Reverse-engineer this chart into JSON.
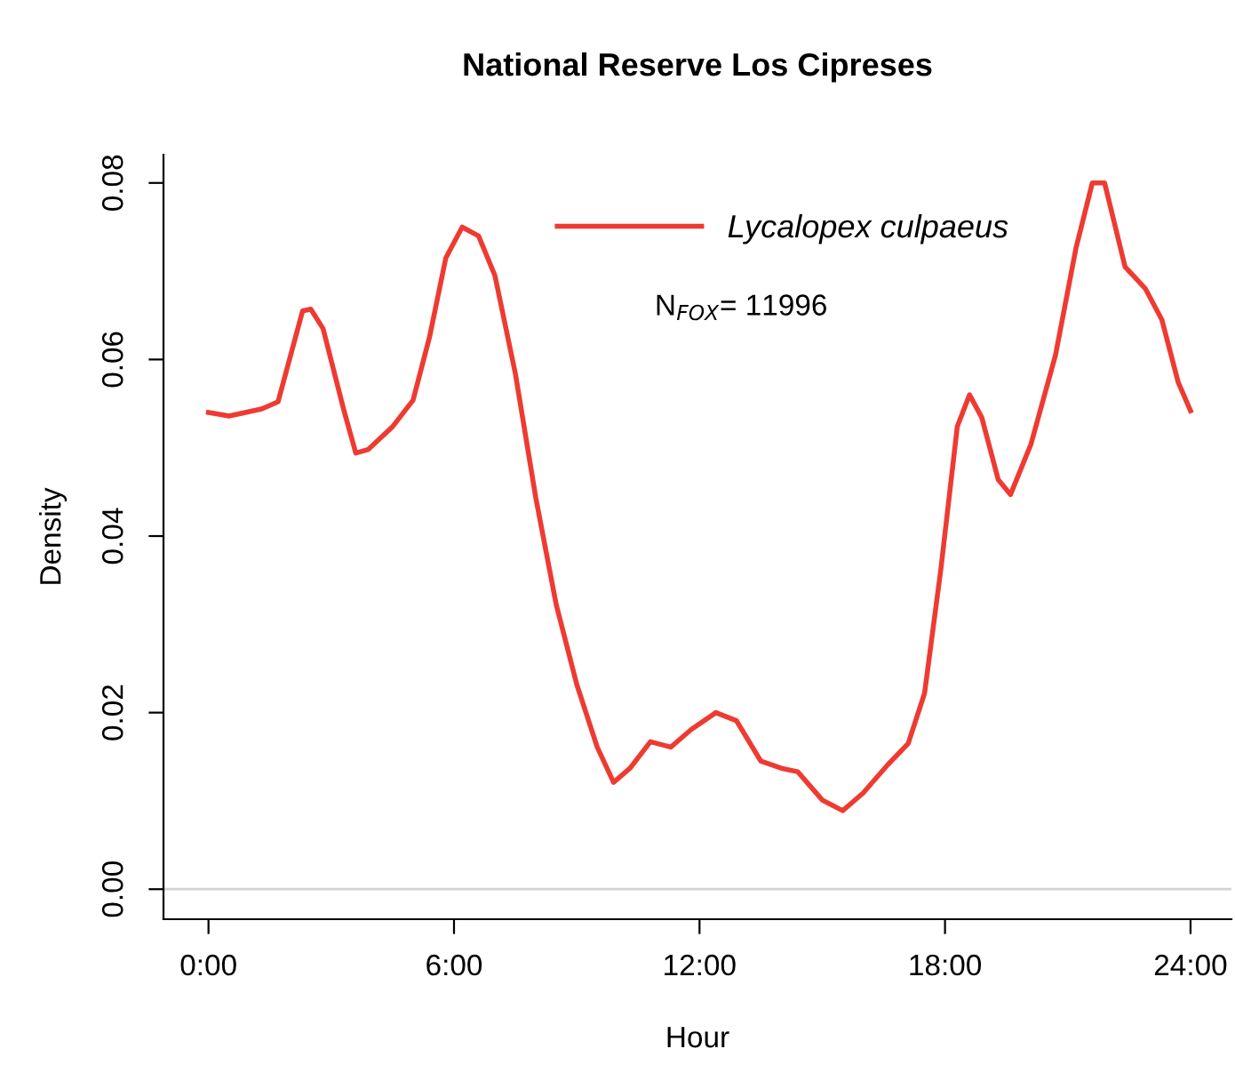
{
  "chart_data": {
    "type": "line",
    "title": "National Reserve Los Cipreses",
    "xlabel": "Hour",
    "ylabel": "Density",
    "x": [
      0,
      0.5,
      1.3,
      1.7,
      2.3,
      2.5,
      2.8,
      3.3,
      3.6,
      3.9,
      4.5,
      5.0,
      5.4,
      5.8,
      6.2,
      6.6,
      7.0,
      7.5,
      8.0,
      8.5,
      9.0,
      9.5,
      9.9,
      10.3,
      10.8,
      11.3,
      11.8,
      12.4,
      12.9,
      13.5,
      14.0,
      14.4,
      15.0,
      15.5,
      16.0,
      16.6,
      17.1,
      17.5,
      17.9,
      18.3,
      18.6,
      18.9,
      19.3,
      19.6,
      20.1,
      20.7,
      21.2,
      21.6,
      21.9,
      22.4,
      22.9,
      23.3,
      23.7,
      24
    ],
    "series": [
      {
        "name": "Lycalopex culpaeus",
        "color": "#ee3b32",
        "values": [
          0.054,
          0.0536,
          0.0544,
          0.0552,
          0.0655,
          0.0657,
          0.0635,
          0.0544,
          0.0494,
          0.0498,
          0.0524,
          0.0554,
          0.0625,
          0.0715,
          0.075,
          0.074,
          0.0695,
          0.0584,
          0.0443,
          0.0322,
          0.0232,
          0.0161,
          0.0121,
          0.0137,
          0.0167,
          0.0161,
          0.0181,
          0.02,
          0.0191,
          0.0145,
          0.0137,
          0.0133,
          0.0101,
          0.0089,
          0.0109,
          0.0141,
          0.0165,
          0.0222,
          0.0363,
          0.0524,
          0.056,
          0.0534,
          0.0464,
          0.0447,
          0.0504,
          0.0605,
          0.0726,
          0.08,
          0.08,
          0.0705,
          0.068,
          0.0645,
          0.0574,
          0.0542
        ]
      }
    ],
    "xlim": [
      -1.1,
      25
    ],
    "xticks": [
      {
        "value": 0,
        "label": "0:00"
      },
      {
        "value": 6,
        "label": "6:00"
      },
      {
        "value": 12,
        "label": "12:00"
      },
      {
        "value": 18,
        "label": "18:00"
      },
      {
        "value": 24,
        "label": "24:00"
      }
    ],
    "ylim": [
      -0.0034,
      0.0832
    ],
    "yticks": [
      {
        "value": 0,
        "label": "0.00"
      },
      {
        "value": 0.02,
        "label": "0.02"
      },
      {
        "value": 0.04,
        "label": "0.04"
      },
      {
        "value": 0.06,
        "label": "0.06"
      },
      {
        "value": 0.08,
        "label": "0.08"
      }
    ],
    "ref_lines": [
      {
        "axis": "y",
        "value": 0,
        "color": "#d3d3d3"
      }
    ],
    "annotations": [
      "N$_{FOX}$= 11996"
    ],
    "legend": "top",
    "grid": false
  }
}
